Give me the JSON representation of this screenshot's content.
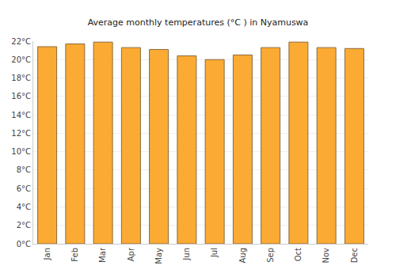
{
  "chart_data": {
    "type": "bar",
    "title": "Average monthly temperatures (°C ) in Nyamuswa",
    "categories": [
      "Jan",
      "Feb",
      "Mar",
      "Apr",
      "May",
      "Jun",
      "Jul",
      "Aug",
      "Sep",
      "Oct",
      "Nov",
      "Dec"
    ],
    "values": [
      21.4,
      21.7,
      21.9,
      21.3,
      21.1,
      20.4,
      20.0,
      20.5,
      21.3,
      21.9,
      21.3,
      21.2
    ],
    "color": "#fbaa33",
    "ylim": [
      0,
      22
    ],
    "yticks": [
      {
        "value": 0,
        "label": "0°C"
      },
      {
        "value": 2,
        "label": "2°C"
      },
      {
        "value": 4,
        "label": "4°C"
      },
      {
        "value": 6,
        "label": "6°C"
      },
      {
        "value": 8,
        "label": "8°C"
      },
      {
        "value": 10,
        "label": "10°C"
      },
      {
        "value": 12,
        "label": "12°C"
      },
      {
        "value": 14,
        "label": "14°C"
      },
      {
        "value": 16,
        "label": "16°C"
      },
      {
        "value": 18,
        "label": "18°C"
      },
      {
        "value": 20,
        "label": "20°C"
      },
      {
        "value": 22,
        "label": "22°C"
      }
    ],
    "grid": true
  }
}
